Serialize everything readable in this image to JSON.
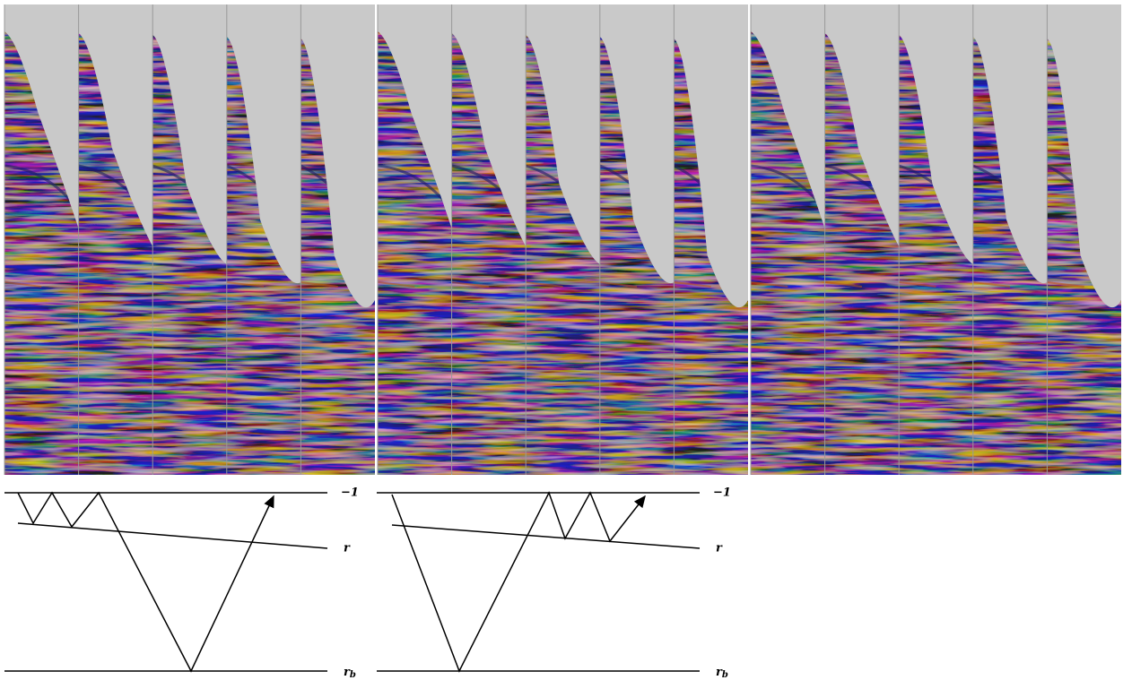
{
  "diagrams": [
    {
      "labels": {
        "surface": "−1",
        "reflector": "r",
        "base": {
          "symbol": "r",
          "subscript": "b"
        }
      }
    },
    {
      "labels": {
        "surface": "−1",
        "reflector": "r",
        "base": {
          "symbol": "r",
          "subscript": "b"
        }
      }
    }
  ]
}
